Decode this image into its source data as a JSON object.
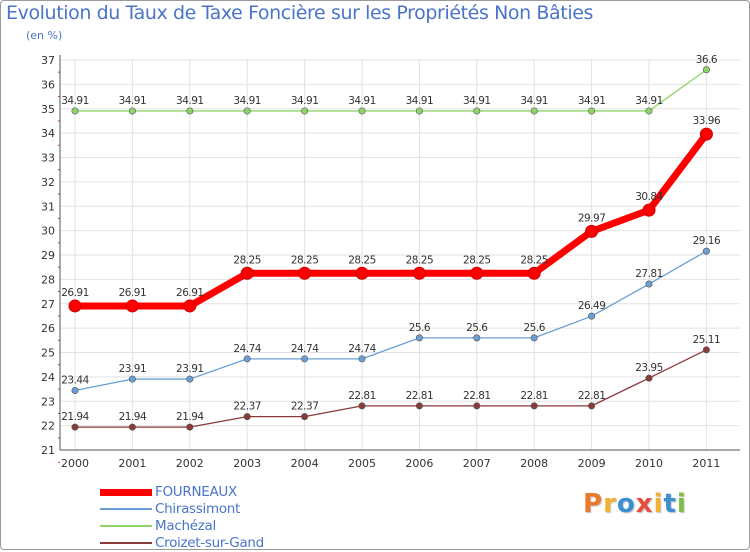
{
  "title": "Evolution du Taux de Taxe Foncière sur les Propriétés Non Bâties",
  "subtitle": "(en %)",
  "logo": {
    "text": "Proxiti",
    "colors": [
      "#e8792a",
      "#f2b134",
      "#3b8fd1",
      "#e84c3d",
      "#f2b134",
      "#3b8fd1",
      "#7bc043"
    ]
  },
  "chart_data": {
    "type": "line",
    "title": "Evolution du Taux de Taxe Foncière sur les Propriétés Non Bâties",
    "ylabel": "(en %)",
    "xlabel": "",
    "x": [
      "2000",
      "2001",
      "2002",
      "2003",
      "2004",
      "2005",
      "2006",
      "2007",
      "2008",
      "2009",
      "2010",
      "2011"
    ],
    "ylim": [
      21,
      37
    ],
    "yticks": [
      "21",
      "22",
      "23",
      "24",
      "25",
      "26",
      "27",
      "28",
      "29",
      "30",
      "31",
      "32",
      "33",
      "34",
      "35",
      "36",
      "37"
    ],
    "grid": true,
    "legend_position": "bottom-left",
    "series": [
      {
        "name": "FOURNEAUX",
        "color": "#ff0000",
        "values": [
          26.91,
          26.91,
          26.91,
          28.25,
          28.25,
          28.25,
          28.25,
          28.25,
          28.25,
          29.97,
          30.84,
          33.96
        ],
        "labels": [
          "26.91",
          "26.91",
          "26.91",
          "28.25",
          "28.25",
          "28.25",
          "28.25",
          "28.25",
          "28.25",
          "29.97",
          "30.84",
          "33.96"
        ]
      },
      {
        "name": "Chirassimont",
        "color": "#6a9fd6",
        "values": [
          23.44,
          23.91,
          23.91,
          24.74,
          24.74,
          24.74,
          25.6,
          25.6,
          25.6,
          26.49,
          27.81,
          29.16
        ],
        "labels": [
          "23.44",
          "23.91",
          "23.91",
          "24.74",
          "24.74",
          "24.74",
          "25.6",
          "25.6",
          "25.6",
          "26.49",
          "27.81",
          "29.16"
        ]
      },
      {
        "name": "Machézal",
        "color": "#8fd468",
        "values": [
          34.91,
          34.91,
          34.91,
          34.91,
          34.91,
          34.91,
          34.91,
          34.91,
          34.91,
          34.91,
          34.91,
          36.6
        ],
        "labels": [
          "34.91",
          "34.91",
          "34.91",
          "34.91",
          "34.91",
          "34.91",
          "34.91",
          "34.91",
          "34.91",
          "34.91",
          "34.91",
          "36.6"
        ]
      },
      {
        "name": "Croizet-sur-Gand",
        "color": "#8b3a3a",
        "values": [
          21.94,
          21.94,
          21.94,
          22.37,
          22.37,
          22.81,
          22.81,
          22.81,
          22.81,
          22.81,
          23.95,
          25.11
        ],
        "labels": [
          "21.94",
          "21.94",
          "21.94",
          "22.37",
          "22.37",
          "22.81",
          "22.81",
          "22.81",
          "22.81",
          "22.81",
          "23.95",
          "25.11"
        ]
      }
    ]
  }
}
